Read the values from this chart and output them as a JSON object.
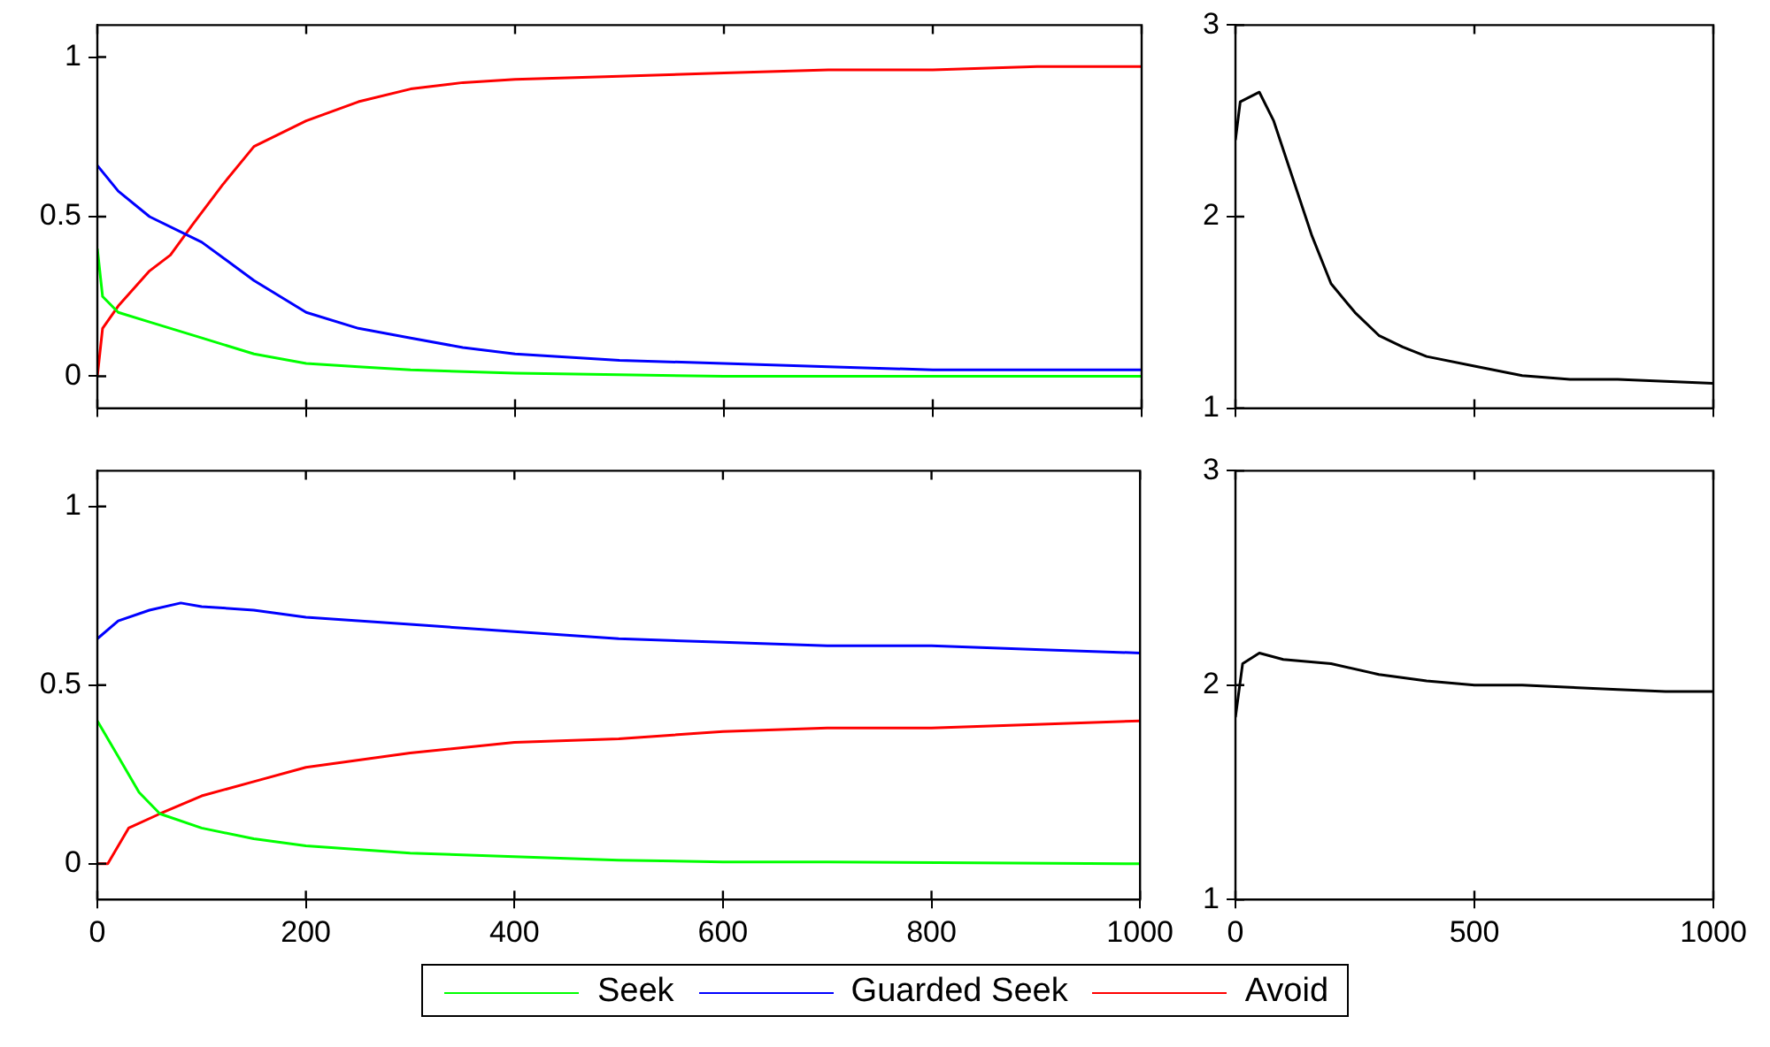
{
  "chart_data": [
    {
      "type": "line",
      "xlim": [
        0,
        1000
      ],
      "xticks": [
        {
          "value": 0,
          "label": null
        },
        {
          "value": 200,
          "label": null
        },
        {
          "value": 400,
          "label": null
        },
        {
          "value": 600,
          "label": null
        },
        {
          "value": 800,
          "label": null
        },
        {
          "value": 1000,
          "label": null
        }
      ],
      "ylim": [
        -0.1,
        1.1
      ],
      "yticks": [
        0,
        0.5,
        1
      ],
      "tick_labels": "y",
      "legend": "bottom",
      "series": [
        {
          "name": "Seek",
          "color": "#00ff00",
          "x": [
            0,
            5,
            20,
            50,
            100,
            150,
            200,
            250,
            300,
            400,
            500,
            600,
            1000
          ],
          "values": [
            0.4,
            0.25,
            0.2,
            0.17,
            0.12,
            0.07,
            0.04,
            0.03,
            0.02,
            0.01,
            0.005,
            0,
            0
          ]
        },
        {
          "name": "Guarded Seek",
          "color": "#0000ff",
          "x": [
            0,
            20,
            50,
            100,
            150,
            200,
            250,
            300,
            350,
            400,
            500,
            600,
            700,
            800,
            900,
            1000
          ],
          "values": [
            0.66,
            0.58,
            0.5,
            0.42,
            0.3,
            0.2,
            0.15,
            0.12,
            0.09,
            0.07,
            0.05,
            0.04,
            0.03,
            0.02,
            0.02,
            0.02
          ]
        },
        {
          "name": "Avoid",
          "color": "#ff0000",
          "x": [
            0,
            5,
            20,
            50,
            70,
            90,
            120,
            150,
            200,
            250,
            300,
            350,
            400,
            500,
            600,
            700,
            800,
            900,
            1000
          ],
          "values": [
            0,
            0.15,
            0.22,
            0.33,
            0.38,
            0.47,
            0.6,
            0.72,
            0.8,
            0.86,
            0.9,
            0.92,
            0.93,
            0.94,
            0.95,
            0.96,
            0.96,
            0.97,
            0.97
          ]
        }
      ]
    },
    {
      "type": "line",
      "xlim": [
        0,
        1000
      ],
      "xticks": [
        0,
        200,
        400,
        600,
        800,
        1000
      ],
      "ylim": [
        -0.1,
        1.1
      ],
      "yticks": [
        0,
        0.5,
        1
      ],
      "legend": "bottom",
      "series": [
        {
          "name": "Seek",
          "color": "#00ff00",
          "x": [
            0,
            20,
            40,
            60,
            100,
            150,
            200,
            300,
            400,
            500,
            600,
            700,
            1000
          ],
          "values": [
            0.4,
            0.3,
            0.2,
            0.14,
            0.1,
            0.07,
            0.05,
            0.03,
            0.02,
            0.01,
            0.005,
            0.005,
            0
          ]
        },
        {
          "name": "Guarded Seek",
          "color": "#0000ff",
          "x": [
            0,
            20,
            50,
            80,
            100,
            150,
            200,
            300,
            400,
            500,
            600,
            700,
            800,
            900,
            1000
          ],
          "values": [
            0.63,
            0.68,
            0.71,
            0.73,
            0.72,
            0.71,
            0.69,
            0.67,
            0.65,
            0.63,
            0.62,
            0.61,
            0.61,
            0.6,
            0.59
          ]
        },
        {
          "name": "Avoid",
          "color": "#ff0000",
          "x": [
            0,
            10,
            30,
            60,
            100,
            150,
            200,
            300,
            400,
            500,
            600,
            700,
            800,
            900,
            1000
          ],
          "values": [
            0,
            0,
            0.1,
            0.14,
            0.19,
            0.23,
            0.27,
            0.31,
            0.34,
            0.35,
            0.37,
            0.38,
            0.38,
            0.39,
            0.4
          ]
        }
      ]
    },
    {
      "type": "line",
      "xlim": [
        0,
        1000
      ],
      "xticks": [
        {
          "value": 0,
          "label": null
        },
        {
          "value": 500,
          "label": null
        },
        {
          "value": 1000,
          "label": null
        }
      ],
      "ylim": [
        1,
        3
      ],
      "yticks": [
        1,
        2,
        3
      ],
      "tick_labels": "y",
      "series": [
        {
          "color": "#000000",
          "x": [
            0,
            10,
            50,
            80,
            120,
            160,
            200,
            250,
            300,
            350,
            400,
            500,
            600,
            700,
            800,
            900,
            1000
          ],
          "values": [
            2.4,
            2.6,
            2.65,
            2.5,
            2.2,
            1.9,
            1.65,
            1.5,
            1.38,
            1.32,
            1.27,
            1.22,
            1.17,
            1.15,
            1.15,
            1.14,
            1.13
          ]
        }
      ]
    },
    {
      "type": "line",
      "xlim": [
        0,
        1000
      ],
      "xticks": [
        0,
        500,
        1000
      ],
      "ylim": [
        1,
        3
      ],
      "yticks": [
        1,
        2,
        3
      ],
      "series": [
        {
          "color": "#000000",
          "x": [
            0,
            15,
            50,
            100,
            200,
            300,
            400,
            500,
            600,
            700,
            800,
            900,
            1000
          ],
          "values": [
            1.85,
            2.1,
            2.15,
            2.12,
            2.1,
            2.05,
            2.02,
            2.0,
            2.0,
            1.99,
            1.98,
            1.97,
            1.97
          ]
        }
      ]
    }
  ]
}
